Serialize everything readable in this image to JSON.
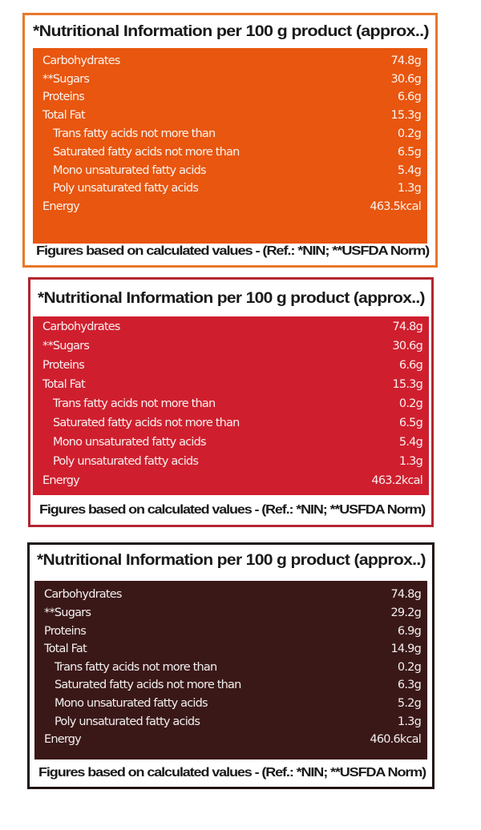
{
  "panels": [
    {
      "title": "*Nutritional Information per 100 g product (approx..)",
      "rows": [
        {
          "label": "Carbohydrates",
          "value": "74.8g",
          "indent": false
        },
        {
          "label": "**Sugars",
          "value": "30.6g",
          "indent": false
        },
        {
          "label": "Proteins",
          "value": "6.6g",
          "indent": false
        },
        {
          "label": "Total Fat",
          "value": "15.3g",
          "indent": false
        },
        {
          "label": "Trans fatty acids not more than",
          "value": "0.2g",
          "indent": true
        },
        {
          "label": "Saturated fatty acids not more than",
          "value": "6.5g",
          "indent": true
        },
        {
          "label": "Mono unsaturated fatty acids",
          "value": "5.4g",
          "indent": true
        },
        {
          "label": "Poly unsaturated fatty acids",
          "value": "1.3g",
          "indent": true
        },
        {
          "label": "Energy",
          "value": "463.5kcal",
          "indent": false
        }
      ],
      "footer": "Figures based on calculated values - (Ref.: *NIN; **USFDA Norm)",
      "color": "#e8560f"
    },
    {
      "title": "*Nutritional Information per 100 g product (approx..)",
      "rows": [
        {
          "label": "Carbohydrates",
          "value": "74.8g",
          "indent": false
        },
        {
          "label": "**Sugars",
          "value": "30.6g",
          "indent": false
        },
        {
          "label": "Proteins",
          "value": "6.6g",
          "indent": false
        },
        {
          "label": "Total Fat",
          "value": "15.3g",
          "indent": false
        },
        {
          "label": "Trans fatty acids not more than",
          "value": "0.2g",
          "indent": true
        },
        {
          "label": "Saturated fatty acids not more than",
          "value": "6.5g",
          "indent": true
        },
        {
          "label": "Mono unsaturated fatty acids",
          "value": "5.4g",
          "indent": true
        },
        {
          "label": "Poly unsaturated fatty acids",
          "value": "1.3g",
          "indent": true
        },
        {
          "label": "Energy",
          "value": "463.2kcal",
          "indent": false
        }
      ],
      "footer": "Figures based on calculated values - (Ref.: *NIN; **USFDA Norm)",
      "color": "#cf1f2e"
    },
    {
      "title": "*Nutritional Information per 100 g product (approx..)",
      "rows": [
        {
          "label": "Carbohydrates",
          "value": "74.8g",
          "indent": false
        },
        {
          "label": "**Sugars",
          "value": "29.2g",
          "indent": false
        },
        {
          "label": "Proteins",
          "value": "6.9g",
          "indent": false
        },
        {
          "label": "Total Fat",
          "value": "14.9g",
          "indent": false
        },
        {
          "label": "Trans fatty acids not more than",
          "value": "0.2g",
          "indent": true
        },
        {
          "label": "Saturated fatty acids not more than",
          "value": "6.3g",
          "indent": true
        },
        {
          "label": "Mono unsaturated fatty acids",
          "value": "5.2g",
          "indent": true
        },
        {
          "label": "Poly unsaturated fatty acids",
          "value": "1.3g",
          "indent": true
        },
        {
          "label": "Energy",
          "value": "460.6kcal",
          "indent": false
        }
      ],
      "footer": "Figures based on calculated values - (Ref.: *NIN; **USFDA Norm)",
      "color": "#3b1818"
    }
  ]
}
